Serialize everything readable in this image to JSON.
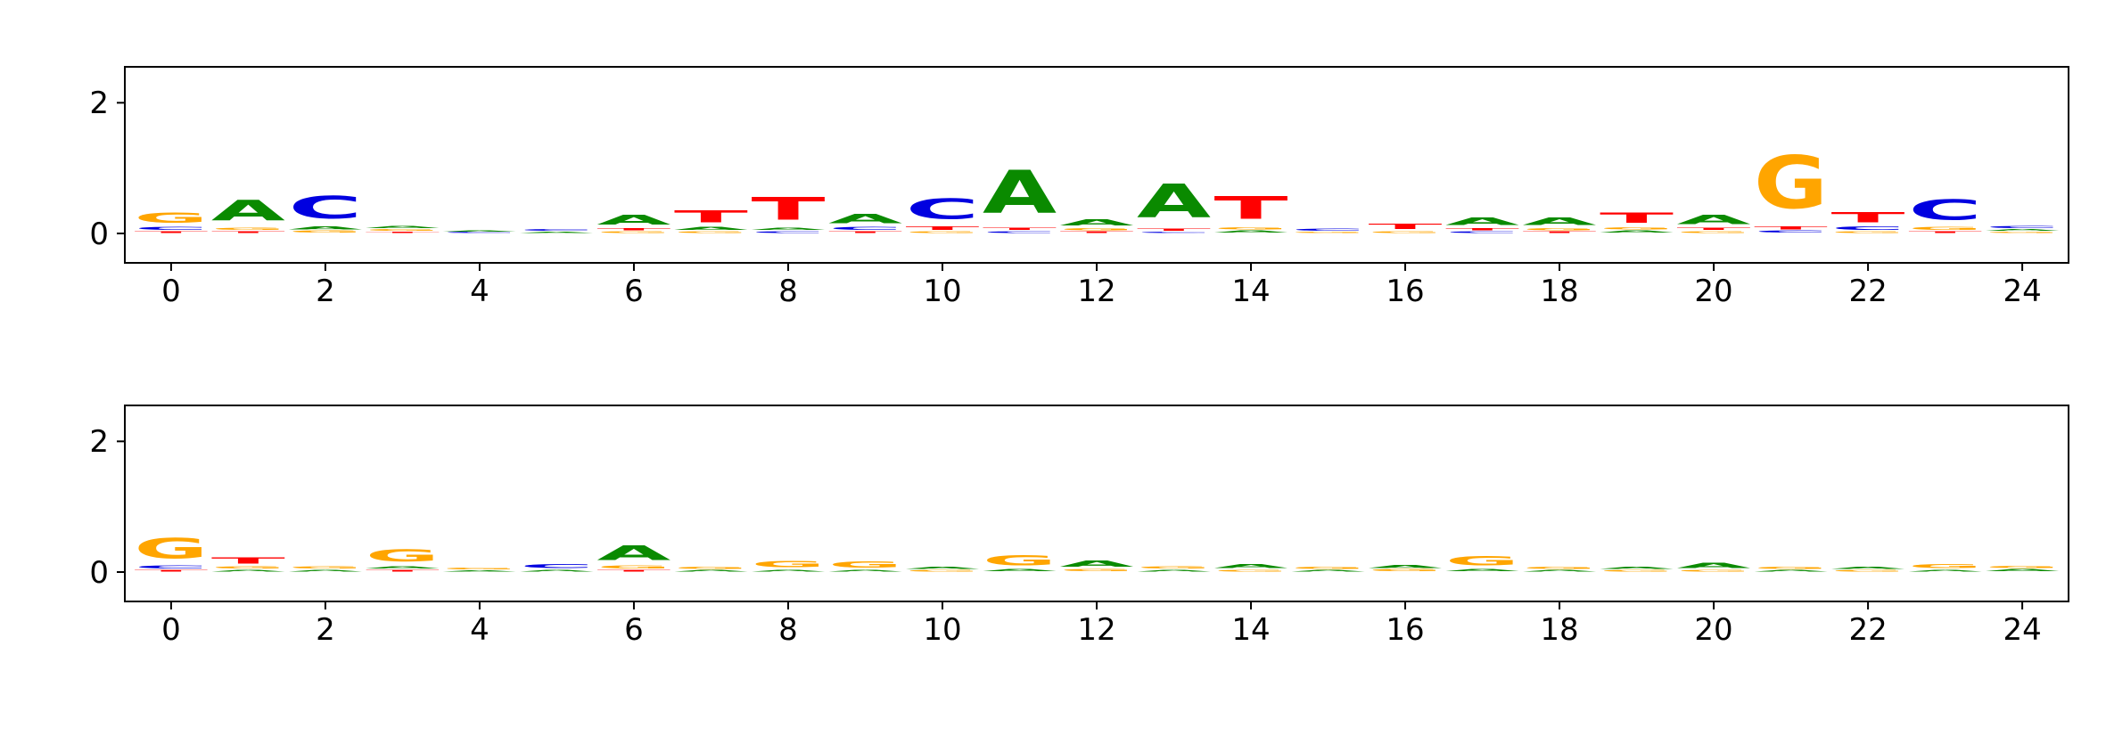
{
  "figure": {
    "background": "#ffffff",
    "axis_color": "#000000"
  },
  "chart_data": [
    {
      "type": "sequence_logo",
      "title": "",
      "xlabel": "",
      "ylabel": "",
      "xlim": [
        -0.6,
        24.6
      ],
      "ylim": [
        -0.45,
        2.55
      ],
      "xticks": [
        0,
        2,
        4,
        6,
        8,
        10,
        12,
        14,
        16,
        18,
        20,
        22,
        24
      ],
      "yticks": [
        0,
        2
      ],
      "grid": false,
      "legend": false,
      "colors": {
        "A": "#0a8a00",
        "C": "#0000e0",
        "G": "#ffa500",
        "T": "#ff0000"
      },
      "positions": [
        {
          "pos": 0,
          "stack": [
            [
              "T",
              0.04
            ],
            [
              "C",
              0.07
            ],
            [
              "G",
              0.26
            ]
          ]
        },
        {
          "pos": 1,
          "stack": [
            [
              "T",
              0.04
            ],
            [
              "G",
              0.06
            ],
            [
              "A",
              0.5
            ]
          ]
        },
        {
          "pos": 2,
          "stack": [
            [
              "G",
              0.05
            ],
            [
              "A",
              0.07
            ],
            [
              "C",
              0.55
            ]
          ]
        },
        {
          "pos": 3,
          "stack": [
            [
              "T",
              0.03
            ],
            [
              "G",
              0.04
            ],
            [
              "A",
              0.06
            ]
          ]
        },
        {
          "pos": 4,
          "stack": [
            [
              "C",
              0.02
            ],
            [
              "A",
              0.03
            ]
          ]
        },
        {
          "pos": 5,
          "stack": [
            [
              "A",
              0.03
            ],
            [
              "C",
              0.04
            ]
          ]
        },
        {
          "pos": 6,
          "stack": [
            [
              "G",
              0.04
            ],
            [
              "T",
              0.05
            ],
            [
              "A",
              0.24
            ]
          ]
        },
        {
          "pos": 7,
          "stack": [
            [
              "G",
              0.04
            ],
            [
              "A",
              0.07
            ],
            [
              "T",
              0.3
            ]
          ]
        },
        {
          "pos": 8,
          "stack": [
            [
              "C",
              0.04
            ],
            [
              "A",
              0.06
            ],
            [
              "T",
              0.55
            ]
          ]
        },
        {
          "pos": 9,
          "stack": [
            [
              "T",
              0.04
            ],
            [
              "C",
              0.07
            ],
            [
              "A",
              0.22
            ]
          ]
        },
        {
          "pos": 10,
          "stack": [
            [
              "G",
              0.04
            ],
            [
              "T",
              0.08
            ],
            [
              "C",
              0.5
            ]
          ]
        },
        {
          "pos": 11,
          "stack": [
            [
              "C",
              0.04
            ],
            [
              "T",
              0.06
            ],
            [
              "A",
              1.05
            ]
          ]
        },
        {
          "pos": 12,
          "stack": [
            [
              "T",
              0.04
            ],
            [
              "G",
              0.05
            ],
            [
              "A",
              0.16
            ]
          ]
        },
        {
          "pos": 13,
          "stack": [
            [
              "C",
              0.03
            ],
            [
              "T",
              0.05
            ],
            [
              "A",
              0.82
            ]
          ]
        },
        {
          "pos": 14,
          "stack": [
            [
              "A",
              0.05
            ],
            [
              "G",
              0.06
            ],
            [
              "T",
              0.55
            ]
          ]
        },
        {
          "pos": 15,
          "stack": [
            [
              "G",
              0.03
            ],
            [
              "C",
              0.05
            ]
          ]
        },
        {
          "pos": 16,
          "stack": [
            [
              "G",
              0.04
            ],
            [
              "T",
              0.13
            ]
          ]
        },
        {
          "pos": 17,
          "stack": [
            [
              "C",
              0.04
            ],
            [
              "T",
              0.05
            ],
            [
              "A",
              0.18
            ]
          ]
        },
        {
          "pos": 18,
          "stack": [
            [
              "T",
              0.04
            ],
            [
              "G",
              0.05
            ],
            [
              "A",
              0.18
            ]
          ]
        },
        {
          "pos": 19,
          "stack": [
            [
              "A",
              0.05
            ],
            [
              "G",
              0.06
            ],
            [
              "T",
              0.26
            ]
          ]
        },
        {
          "pos": 20,
          "stack": [
            [
              "G",
              0.04
            ],
            [
              "T",
              0.06
            ],
            [
              "A",
              0.22
            ]
          ]
        },
        {
          "pos": 21,
          "stack": [
            [
              "C",
              0.05
            ],
            [
              "T",
              0.07
            ],
            [
              "G",
              1.3
            ]
          ]
        },
        {
          "pos": 22,
          "stack": [
            [
              "G",
              0.04
            ],
            [
              "C",
              0.08
            ],
            [
              "T",
              0.26
            ]
          ]
        },
        {
          "pos": 23,
          "stack": [
            [
              "T",
              0.04
            ],
            [
              "G",
              0.07
            ],
            [
              "C",
              0.5
            ]
          ]
        },
        {
          "pos": 24,
          "stack": [
            [
              "G",
              0.03
            ],
            [
              "A",
              0.04
            ],
            [
              "C",
              0.06
            ]
          ]
        }
      ]
    },
    {
      "type": "sequence_logo",
      "title": "",
      "xlabel": "",
      "ylabel": "",
      "xlim": [
        -0.6,
        24.6
      ],
      "ylim": [
        -0.45,
        2.55
      ],
      "xticks": [
        0,
        2,
        4,
        6,
        8,
        10,
        12,
        14,
        16,
        18,
        20,
        22,
        24
      ],
      "yticks": [
        0,
        2
      ],
      "grid": false,
      "legend": false,
      "colors": {
        "A": "#0a8a00",
        "C": "#0000e0",
        "G": "#ffa500",
        "T": "#ff0000"
      },
      "positions": [
        {
          "pos": 0,
          "stack": [
            [
              "T",
              0.04
            ],
            [
              "C",
              0.07
            ],
            [
              "G",
              0.5
            ]
          ]
        },
        {
          "pos": 1,
          "stack": [
            [
              "A",
              0.04
            ],
            [
              "G",
              0.06
            ],
            [
              "T",
              0.16
            ]
          ]
        },
        {
          "pos": 2,
          "stack": [
            [
              "A",
              0.04
            ],
            [
              "G",
              0.06
            ]
          ]
        },
        {
          "pos": 3,
          "stack": [
            [
              "T",
              0.04
            ],
            [
              "A",
              0.06
            ],
            [
              "G",
              0.3
            ]
          ]
        },
        {
          "pos": 4,
          "stack": [
            [
              "A",
              0.03
            ],
            [
              "G",
              0.04
            ]
          ]
        },
        {
          "pos": 5,
          "stack": [
            [
              "A",
              0.04
            ],
            [
              "C",
              0.1
            ]
          ]
        },
        {
          "pos": 6,
          "stack": [
            [
              "T",
              0.04
            ],
            [
              "G",
              0.07
            ],
            [
              "A",
              0.36
            ]
          ]
        },
        {
          "pos": 7,
          "stack": [
            [
              "A",
              0.04
            ],
            [
              "G",
              0.05
            ]
          ]
        },
        {
          "pos": 8,
          "stack": [
            [
              "A",
              0.04
            ],
            [
              "G",
              0.16
            ]
          ]
        },
        {
          "pos": 9,
          "stack": [
            [
              "A",
              0.04
            ],
            [
              "G",
              0.15
            ]
          ]
        },
        {
          "pos": 10,
          "stack": [
            [
              "G",
              0.04
            ],
            [
              "A",
              0.05
            ]
          ]
        },
        {
          "pos": 11,
          "stack": [
            [
              "A",
              0.05
            ],
            [
              "G",
              0.26
            ]
          ]
        },
        {
          "pos": 12,
          "stack": [
            [
              "G",
              0.05
            ],
            [
              "A",
              0.16
            ]
          ]
        },
        {
          "pos": 13,
          "stack": [
            [
              "A",
              0.04
            ],
            [
              "G",
              0.06
            ]
          ]
        },
        {
          "pos": 14,
          "stack": [
            [
              "G",
              0.04
            ],
            [
              "A",
              0.1
            ]
          ]
        },
        {
          "pos": 15,
          "stack": [
            [
              "A",
              0.04
            ],
            [
              "G",
              0.05
            ]
          ]
        },
        {
          "pos": 16,
          "stack": [
            [
              "G",
              0.05
            ],
            [
              "A",
              0.07
            ]
          ]
        },
        {
          "pos": 17,
          "stack": [
            [
              "A",
              0.06
            ],
            [
              "G",
              0.22
            ]
          ]
        },
        {
          "pos": 18,
          "stack": [
            [
              "A",
              0.04
            ],
            [
              "G",
              0.05
            ]
          ]
        },
        {
          "pos": 19,
          "stack": [
            [
              "G",
              0.04
            ],
            [
              "A",
              0.05
            ]
          ]
        },
        {
          "pos": 20,
          "stack": [
            [
              "G",
              0.04
            ],
            [
              "A",
              0.12
            ]
          ]
        },
        {
          "pos": 21,
          "stack": [
            [
              "A",
              0.04
            ],
            [
              "G",
              0.05
            ]
          ]
        },
        {
          "pos": 22,
          "stack": [
            [
              "G",
              0.04
            ],
            [
              "A",
              0.05
            ]
          ]
        },
        {
          "pos": 23,
          "stack": [
            [
              "A",
              0.04
            ],
            [
              "G",
              0.1
            ]
          ]
        },
        {
          "pos": 24,
          "stack": [
            [
              "A",
              0.05
            ],
            [
              "G",
              0.06
            ]
          ]
        }
      ]
    }
  ]
}
